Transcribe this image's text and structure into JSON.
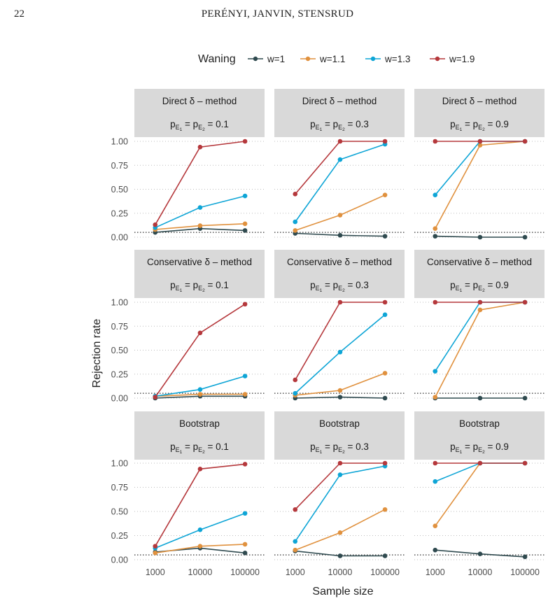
{
  "page": {
    "number": "22",
    "running_head": "PERÉNYI, JANVIN, STENSRUD"
  },
  "chart_data": {
    "type": "line",
    "legend_title": "Waning",
    "legend_placement": "top",
    "xlabel": "Sample size",
    "ylabel": "Rejection rate",
    "x_categories": [
      "1000",
      "10000",
      "100000"
    ],
    "y_ticks": [
      "0.00",
      "0.25",
      "0.50",
      "0.75",
      "1.00"
    ],
    "ylim": [
      0,
      1
    ],
    "reference_line": 0.05,
    "series_styles": [
      {
        "name": "w=1",
        "color": "#2f4a4f"
      },
      {
        "name": "w=1.1",
        "color": "#e0913e"
      },
      {
        "name": "w=1.3",
        "color": "#0ea5d6"
      },
      {
        "name": "w=1.9",
        "color": "#b5383c"
      }
    ],
    "p_label": {
      "prefix": "p",
      "sub1": "E",
      "subsub1": "1",
      "sub2": "E",
      "subsub2": "2",
      "equals": "="
    },
    "rows": [
      {
        "method": "Direct  δ – method",
        "panels": [
          {
            "p": "0.1",
            "series": [
              [
                0.05,
                0.09,
                0.07
              ],
              [
                0.08,
                0.12,
                0.14
              ],
              [
                0.1,
                0.31,
                0.43
              ],
              [
                0.13,
                0.94,
                1.0
              ]
            ]
          },
          {
            "p": "0.3",
            "series": [
              [
                0.04,
                0.02,
                0.01
              ],
              [
                0.07,
                0.23,
                0.44
              ],
              [
                0.16,
                0.81,
                0.97
              ],
              [
                0.45,
                1.0,
                1.0
              ]
            ]
          },
          {
            "p": "0.9",
            "series": [
              [
                0.01,
                0.0,
                0.0
              ],
              [
                0.09,
                0.96,
                1.0
              ],
              [
                0.44,
                1.0,
                1.0
              ],
              [
                1.0,
                1.0,
                1.0
              ]
            ]
          }
        ]
      },
      {
        "method": "Conservative  δ – method",
        "panels": [
          {
            "p": "0.1",
            "series": [
              [
                0.0,
                0.02,
                0.02
              ],
              [
                0.02,
                0.04,
                0.04
              ],
              [
                0.02,
                0.09,
                0.23
              ],
              [
                0.01,
                0.68,
                0.98
              ]
            ]
          },
          {
            "p": "0.3",
            "series": [
              [
                0.0,
                0.01,
                0.0
              ],
              [
                0.03,
                0.08,
                0.26
              ],
              [
                0.05,
                0.48,
                0.87
              ],
              [
                0.19,
                1.0,
                1.0
              ]
            ]
          },
          {
            "p": "0.9",
            "series": [
              [
                0.0,
                0.0,
                0.0
              ],
              [
                0.01,
                0.92,
                1.0
              ],
              [
                0.28,
                1.0,
                1.0
              ],
              [
                1.0,
                1.0,
                1.0
              ]
            ]
          }
        ]
      },
      {
        "method": "Bootstrap",
        "panels": [
          {
            "p": "0.1",
            "series": [
              [
                0.08,
                0.12,
                0.07
              ],
              [
                0.07,
                0.14,
                0.16
              ],
              [
                0.12,
                0.31,
                0.48
              ],
              [
                0.14,
                0.94,
                0.99
              ]
            ]
          },
          {
            "p": "0.3",
            "series": [
              [
                0.09,
                0.04,
                0.04
              ],
              [
                0.1,
                0.28,
                0.52
              ],
              [
                0.19,
                0.88,
                0.97
              ],
              [
                0.52,
                1.0,
                1.0
              ]
            ]
          },
          {
            "p": "0.9",
            "series": [
              [
                0.1,
                0.06,
                0.03
              ],
              [
                0.35,
                1.0,
                1.0
              ],
              [
                0.81,
                1.0,
                1.0
              ],
              [
                1.0,
                1.0,
                1.0
              ]
            ]
          }
        ]
      }
    ]
  }
}
